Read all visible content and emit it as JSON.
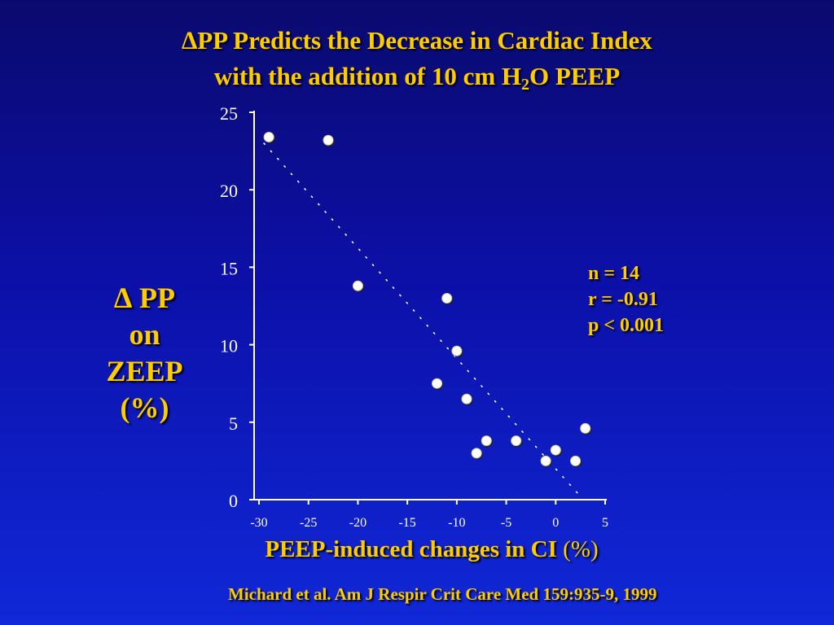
{
  "title": {
    "line1": "∆PP Predicts the Decrease in Cardiac Index",
    "line2_prefix": "with the addition of 10 cm H",
    "line2_sub": "2",
    "line2_suffix": "O PEEP"
  },
  "ylabel_lines": [
    "∆ PP",
    "on",
    "ZEEP",
    "(%)"
  ],
  "xlabel": {
    "text": "PEEP-induced changes in CI ",
    "unit": "(%)"
  },
  "stats": [
    "n = 14",
    "r = -0.91",
    "p < 0.001"
  ],
  "citation": "Michard et al. Am J Respir Crit Care Med 159:935-9, 1999",
  "colors": {
    "text_accent": "#ffcc00",
    "axis": "#ffffff",
    "marker": "#ffffff",
    "regression_line": "#ffffff"
  },
  "chart_data": {
    "type": "scatter",
    "xlim": [
      -30,
      5
    ],
    "ylim": [
      0,
      25
    ],
    "xticks": [
      -30,
      -25,
      -20,
      -15,
      -10,
      -5,
      0,
      5
    ],
    "yticks": [
      0,
      5,
      10,
      15,
      20,
      25
    ],
    "xlabel": "PEEP-induced changes in CI (%)",
    "ylabel": "∆ PP on ZEEP (%)",
    "points": [
      {
        "x": -29,
        "y": 23.4
      },
      {
        "x": -23,
        "y": 23.2
      },
      {
        "x": -20,
        "y": 13.8
      },
      {
        "x": -11,
        "y": 13.0
      },
      {
        "x": -10,
        "y": 9.6
      },
      {
        "x": -12,
        "y": 7.5
      },
      {
        "x": -9,
        "y": 6.5
      },
      {
        "x": -8,
        "y": 3.0
      },
      {
        "x": -7,
        "y": 3.8
      },
      {
        "x": -4,
        "y": 3.8
      },
      {
        "x": -1,
        "y": 2.5
      },
      {
        "x": 0,
        "y": 3.2
      },
      {
        "x": 2,
        "y": 2.5
      },
      {
        "x": 3,
        "y": 4.6
      }
    ],
    "regression": {
      "x1": -29.5,
      "y1": 23.0,
      "x2": 2.8,
      "y2": 0
    },
    "grid": false,
    "legend": "none"
  }
}
